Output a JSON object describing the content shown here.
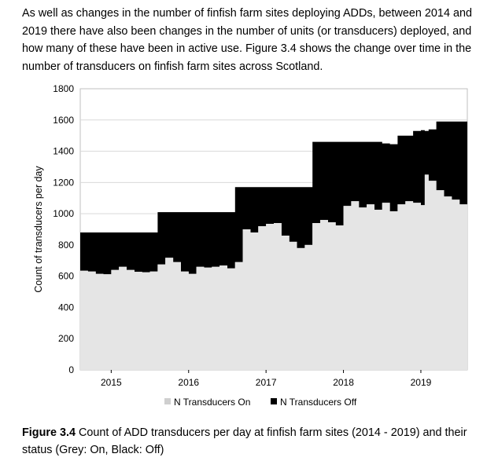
{
  "intro_text": "As well as changes in the number of finfish farm sites deploying ADDs, between 2014 and 2019 there have also been changes in the number of units (or transducers) deployed, and how many of these have been in active use. Figure 3.4 shows the change over time in the number of transducers on finfish farm sites across Scotland.",
  "caption": {
    "label": "Figure 3.4",
    "text": " Count of ADD transducers per day at finfish farm sites (2014 - 2019) and their status (Grey: On, Black: Off)"
  },
  "chart_data": {
    "type": "area",
    "stacked": true,
    "title": "",
    "xlabel": "",
    "ylabel": "Count of transducers per day",
    "xlim": [
      2014.6,
      2019.6
    ],
    "ylim": [
      0,
      1800
    ],
    "x_ticks": [
      2015,
      2016,
      2017,
      2018,
      2019
    ],
    "x_tick_labels": [
      "2015",
      "2016",
      "2017",
      "2018",
      "2019"
    ],
    "y_ticks": [
      0,
      200,
      400,
      600,
      800,
      1000,
      1200,
      1400,
      1600,
      1800
    ],
    "grid": "horizontal",
    "legend_position": "bottom",
    "colors": {
      "on": "#e5e5e5",
      "off": "#000000",
      "grid": "#d9d9d9"
    },
    "series": [
      {
        "name": "N Transducers On",
        "x": [
          2014.6,
          2014.7,
          2014.8,
          2014.9,
          2015.0,
          2015.1,
          2015.2,
          2015.3,
          2015.4,
          2015.5,
          2015.6,
          2015.7,
          2015.8,
          2015.9,
          2016.0,
          2016.1,
          2016.2,
          2016.3,
          2016.4,
          2016.5,
          2016.6,
          2016.7,
          2016.8,
          2016.9,
          2017.0,
          2017.1,
          2017.2,
          2017.3,
          2017.4,
          2017.5,
          2017.6,
          2017.7,
          2017.8,
          2017.9,
          2018.0,
          2018.1,
          2018.2,
          2018.3,
          2018.4,
          2018.5,
          2018.6,
          2018.7,
          2018.8,
          2018.9,
          2019.0,
          2019.05,
          2019.1,
          2019.2,
          2019.3,
          2019.4,
          2019.5,
          2019.6
        ],
        "values": [
          635,
          630,
          615,
          612,
          640,
          660,
          640,
          628,
          625,
          630,
          675,
          718,
          690,
          630,
          615,
          660,
          655,
          660,
          668,
          650,
          690,
          900,
          880,
          920,
          935,
          940,
          860,
          820,
          780,
          800,
          940,
          960,
          945,
          925,
          1050,
          1080,
          1040,
          1060,
          1025,
          1070,
          1015,
          1060,
          1080,
          1070,
          1055,
          1250,
          1210,
          1150,
          1110,
          1090,
          1060,
          1030
        ]
      },
      {
        "name": "N Transducers Off",
        "x": [
          2014.6,
          2014.7,
          2014.8,
          2014.9,
          2015.0,
          2015.1,
          2015.2,
          2015.3,
          2015.4,
          2015.5,
          2015.6,
          2015.7,
          2015.8,
          2015.9,
          2016.0,
          2016.1,
          2016.2,
          2016.3,
          2016.4,
          2016.5,
          2016.6,
          2016.7,
          2016.8,
          2016.9,
          2017.0,
          2017.1,
          2017.2,
          2017.3,
          2017.4,
          2017.5,
          2017.6,
          2017.7,
          2017.8,
          2017.9,
          2018.0,
          2018.1,
          2018.2,
          2018.3,
          2018.4,
          2018.5,
          2018.6,
          2018.7,
          2018.8,
          2018.9,
          2019.0,
          2019.05,
          2019.1,
          2019.2,
          2019.3,
          2019.4,
          2019.5,
          2019.6
        ],
        "values": [
          245,
          250,
          265,
          268,
          240,
          220,
          240,
          252,
          255,
          250,
          335,
          292,
          320,
          380,
          395,
          350,
          355,
          350,
          342,
          360,
          480,
          270,
          290,
          250,
          235,
          230,
          310,
          350,
          390,
          370,
          520,
          500,
          515,
          535,
          410,
          380,
          420,
          400,
          435,
          380,
          430,
          440,
          420,
          460,
          480,
          280,
          330,
          440,
          480,
          500,
          530,
          550
        ]
      }
    ]
  }
}
